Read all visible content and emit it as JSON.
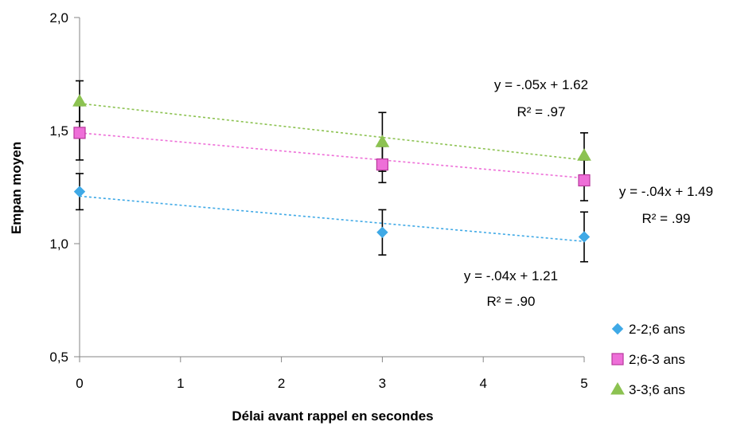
{
  "chart_data": {
    "type": "scatter",
    "xlabel": "Délai avant  rappel en secondes",
    "ylabel": "Empan moyen",
    "xlim": [
      0,
      5
    ],
    "ylim": [
      0.5,
      2.0
    ],
    "x_ticks": [
      0,
      1,
      2,
      3,
      4,
      5
    ],
    "x_tick_labels": [
      "0",
      "1",
      "2",
      "3",
      "4",
      "5"
    ],
    "y_ticks": [
      0.5,
      1.0,
      1.5,
      2.0
    ],
    "y_tick_labels": [
      "0,5",
      "1,0",
      "1,5",
      "2,0"
    ],
    "grid": false,
    "legend_position": "bottom-right",
    "series": [
      {
        "name": "2-2;6 ans",
        "marker": "diamond",
        "color": "#3fa9e6",
        "x": [
          0,
          3,
          5
        ],
        "y": [
          1.23,
          1.05,
          1.03
        ],
        "error": [
          0.08,
          0.1,
          0.11
        ],
        "trendline": {
          "slope": -0.04,
          "intercept": 1.21,
          "equation": "y = -.04x + 1.21",
          "r2": "R² = .90"
        }
      },
      {
        "name": "2;6-3 ans",
        "marker": "square",
        "color": "#ee6fd8",
        "x": [
          0,
          3,
          5
        ],
        "y": [
          1.49,
          1.35,
          1.28
        ],
        "error": [
          0.12,
          0.08,
          0.09
        ],
        "trendline": {
          "slope": -0.04,
          "intercept": 1.49,
          "equation": "y = -.04x + 1.49",
          "r2": "R² = .99"
        }
      },
      {
        "name": "3-3;6 ans",
        "marker": "triangle",
        "color": "#8cc251",
        "x": [
          0,
          3,
          5
        ],
        "y": [
          1.63,
          1.45,
          1.39
        ],
        "error": [
          0.09,
          0.13,
          0.1
        ],
        "trendline": {
          "slope": -0.05,
          "intercept": 1.62,
          "equation": "y = -.05x + 1.62",
          "r2": "R² = .97"
        }
      }
    ]
  }
}
